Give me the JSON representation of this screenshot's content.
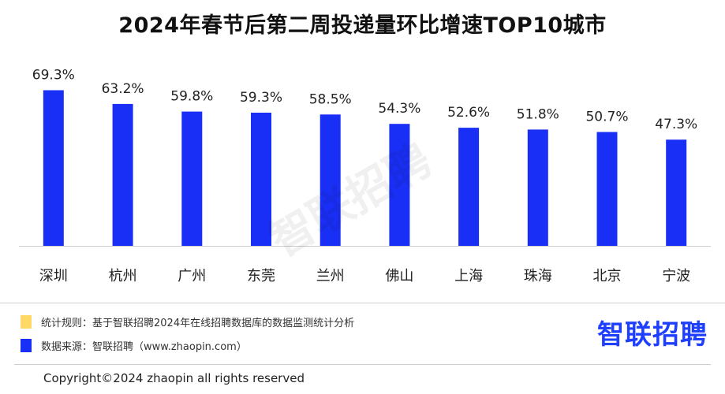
{
  "title": "2024年春节后第二周投递量环比增速TOP10城市",
  "chart_data": {
    "type": "bar",
    "categories": [
      "深圳",
      "杭州",
      "广州",
      "东莞",
      "兰州",
      "佛山",
      "上海",
      "珠海",
      "北京",
      "宁波"
    ],
    "values": [
      69.3,
      63.2,
      59.8,
      59.3,
      58.5,
      54.3,
      52.6,
      51.8,
      50.7,
      47.3
    ],
    "data_labels": [
      "69.3%",
      "63.2%",
      "59.8%",
      "59.3%",
      "58.5%",
      "54.3%",
      "52.6%",
      "51.8%",
      "50.7%",
      "47.3%"
    ],
    "unit": "%",
    "ylim": [
      0,
      80
    ],
    "grid": false,
    "bar_color": "#1a2ff5"
  },
  "watermark": "智联招聘",
  "legend": {
    "rule": {
      "text": "统计规则：基于智联招聘2024年在线招聘数据库的数据监测统计分析",
      "color": "#ffd966"
    },
    "source": {
      "text": "数据来源：智联招聘（www.zhaopin.com）",
      "color": "#1a2ff5"
    }
  },
  "brand": {
    "logo_text": "智联招聘",
    "color": "#1f3fff"
  },
  "copyright": "Copyright©2024 zhaopin all rights reserved",
  "colors": {
    "divider": "#cfcfcf",
    "axis": "#cccccc"
  }
}
